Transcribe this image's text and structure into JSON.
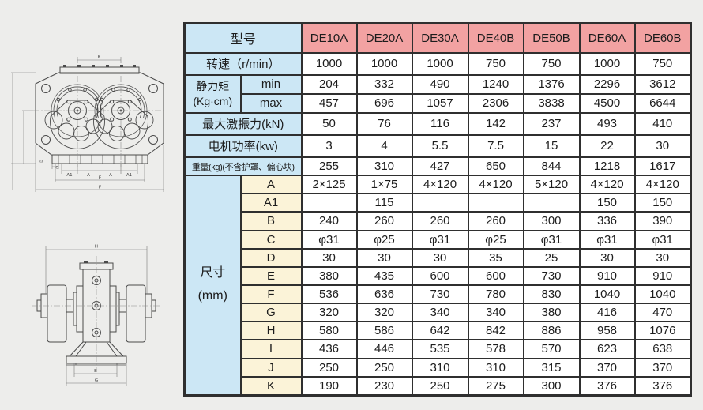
{
  "colors": {
    "header_pink": "#f2a2a2",
    "label_blue": "#cce7f5",
    "dim_cream": "#fbf3d8",
    "cell_white": "#ffffff",
    "border": "#2f2f2f",
    "page_bg": "#ededeb"
  },
  "table": {
    "header": {
      "label": "型号",
      "models": [
        "DE10A",
        "DE20A",
        "DE30A",
        "DE40B",
        "DE50B",
        "DE60A",
        "DE60B"
      ]
    },
    "rows": [
      {
        "type": "full",
        "label": "转速（r/min）",
        "cells": [
          "1000",
          "1000",
          "1000",
          "750",
          "750",
          "1000",
          "750"
        ]
      },
      {
        "type": "group_start",
        "group_label": "静力矩\n(Kg·cm)",
        "group_span": 2,
        "sub_class": "lab",
        "sub_label": "min",
        "cells": [
          "204",
          "332",
          "490",
          "1240",
          "1376",
          "2296",
          "3612"
        ]
      },
      {
        "type": "group_cont",
        "sub_class": "lab",
        "sub_label": "max",
        "cells": [
          "457",
          "696",
          "1057",
          "2306",
          "3838",
          "4500",
          "6644"
        ]
      },
      {
        "type": "full",
        "label": "最大激振力(kN)",
        "cells": [
          "50",
          "76",
          "116",
          "142",
          "237",
          "493",
          "410"
        ]
      },
      {
        "type": "full",
        "label": "电机功率(kw)",
        "cells": [
          "3",
          "4",
          "5.5",
          "7.5",
          "15",
          "22",
          "30"
        ]
      },
      {
        "type": "full",
        "small": true,
        "label": "重量(kg)(不含护罩、偏心块)",
        "cells": [
          "255",
          "310",
          "427",
          "650",
          "844",
          "1218",
          "1617"
        ]
      },
      {
        "type": "group_start",
        "group_label": "尺寸\n(mm)",
        "group_dim": true,
        "group_span": 12,
        "sub_class": "dim",
        "sub_label": "A",
        "cells": [
          "2×125",
          "1×75",
          "4×120",
          "4×120",
          "5×120",
          "4×120",
          "4×120"
        ]
      },
      {
        "type": "group_cont",
        "sub_class": "dim",
        "sub_label": "A1",
        "cells": [
          "",
          "115",
          "",
          "",
          "",
          "150",
          "150"
        ]
      },
      {
        "type": "group_cont",
        "sub_class": "dim",
        "sub_label": "B",
        "cells": [
          "240",
          "260",
          "260",
          "260",
          "300",
          "336",
          "390"
        ]
      },
      {
        "type": "group_cont",
        "sub_class": "dim",
        "sub_label": "C",
        "cells": [
          "φ31",
          "φ25",
          "φ31",
          "φ25",
          "φ31",
          "φ31",
          "φ31"
        ]
      },
      {
        "type": "group_cont",
        "sub_class": "dim",
        "sub_label": "D",
        "cells": [
          "30",
          "30",
          "30",
          "35",
          "25",
          "30",
          "30"
        ]
      },
      {
        "type": "group_cont",
        "sub_class": "dim",
        "sub_label": "E",
        "cells": [
          "380",
          "435",
          "600",
          "600",
          "730",
          "910",
          "910"
        ]
      },
      {
        "type": "group_cont",
        "sub_class": "dim",
        "sub_label": "F",
        "cells": [
          "536",
          "636",
          "730",
          "780",
          "830",
          "1040",
          "1040"
        ]
      },
      {
        "type": "group_cont",
        "sub_class": "dim",
        "sub_label": "G",
        "cells": [
          "320",
          "320",
          "340",
          "340",
          "380",
          "416",
          "470"
        ]
      },
      {
        "type": "group_cont",
        "sub_class": "dim",
        "sub_label": "H",
        "cells": [
          "580",
          "586",
          "642",
          "842",
          "886",
          "958",
          "1076"
        ]
      },
      {
        "type": "group_cont",
        "sub_class": "dim",
        "sub_label": "I",
        "cells": [
          "436",
          "446",
          "535",
          "578",
          "570",
          "623",
          "638"
        ]
      },
      {
        "type": "group_cont",
        "sub_class": "dim",
        "sub_label": "J",
        "cells": [
          "250",
          "250",
          "310",
          "310",
          "315",
          "370",
          "370"
        ]
      },
      {
        "type": "group_cont",
        "sub_class": "dim",
        "sub_label": "K",
        "cells": [
          "190",
          "230",
          "250",
          "275",
          "300",
          "376",
          "376"
        ]
      }
    ]
  },
  "drawings": {
    "front_view": {
      "dim_labels": {
        "k": "K",
        "a1_l": "A1",
        "a_l": "A",
        "a_r": "A",
        "a1_r": "A1",
        "e": "E",
        "f": "F",
        "c": "C",
        "d": "D"
      }
    },
    "side_view": {
      "dim_labels": {
        "h": "H",
        "b": "B",
        "g": "G"
      }
    }
  }
}
